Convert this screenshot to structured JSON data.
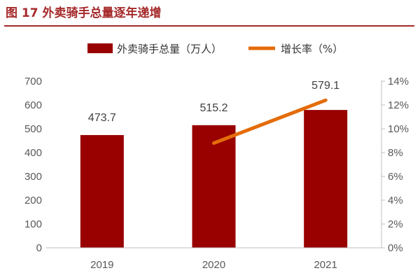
{
  "header": {
    "title": "图 17 外卖骑手总量逐年递增"
  },
  "chart_data": {
    "type": "bar",
    "categories": [
      "2019",
      "2020",
      "2021"
    ],
    "series": [
      {
        "name": "外卖骑手总量（万人）",
        "kind": "bar",
        "axis": "left",
        "values": [
          473.7,
          515.2,
          579.1
        ],
        "data_labels": [
          "473.7",
          "515.2",
          "579.1"
        ],
        "color": "#990000"
      },
      {
        "name": "增长率（%）",
        "kind": "line",
        "axis": "right",
        "values": [
          null,
          8.8,
          12.4
        ],
        "color": "#e46c0a"
      }
    ],
    "ylim_left": [
      0,
      700
    ],
    "yticks_left": [
      "0",
      "100",
      "200",
      "300",
      "400",
      "500",
      "600",
      "700"
    ],
    "ylim_right": [
      0,
      14
    ],
    "yticks_right": [
      "0%",
      "2%",
      "4%",
      "6%",
      "8%",
      "10%",
      "12%",
      "14%"
    ],
    "legend_position": "top",
    "grid": false
  }
}
